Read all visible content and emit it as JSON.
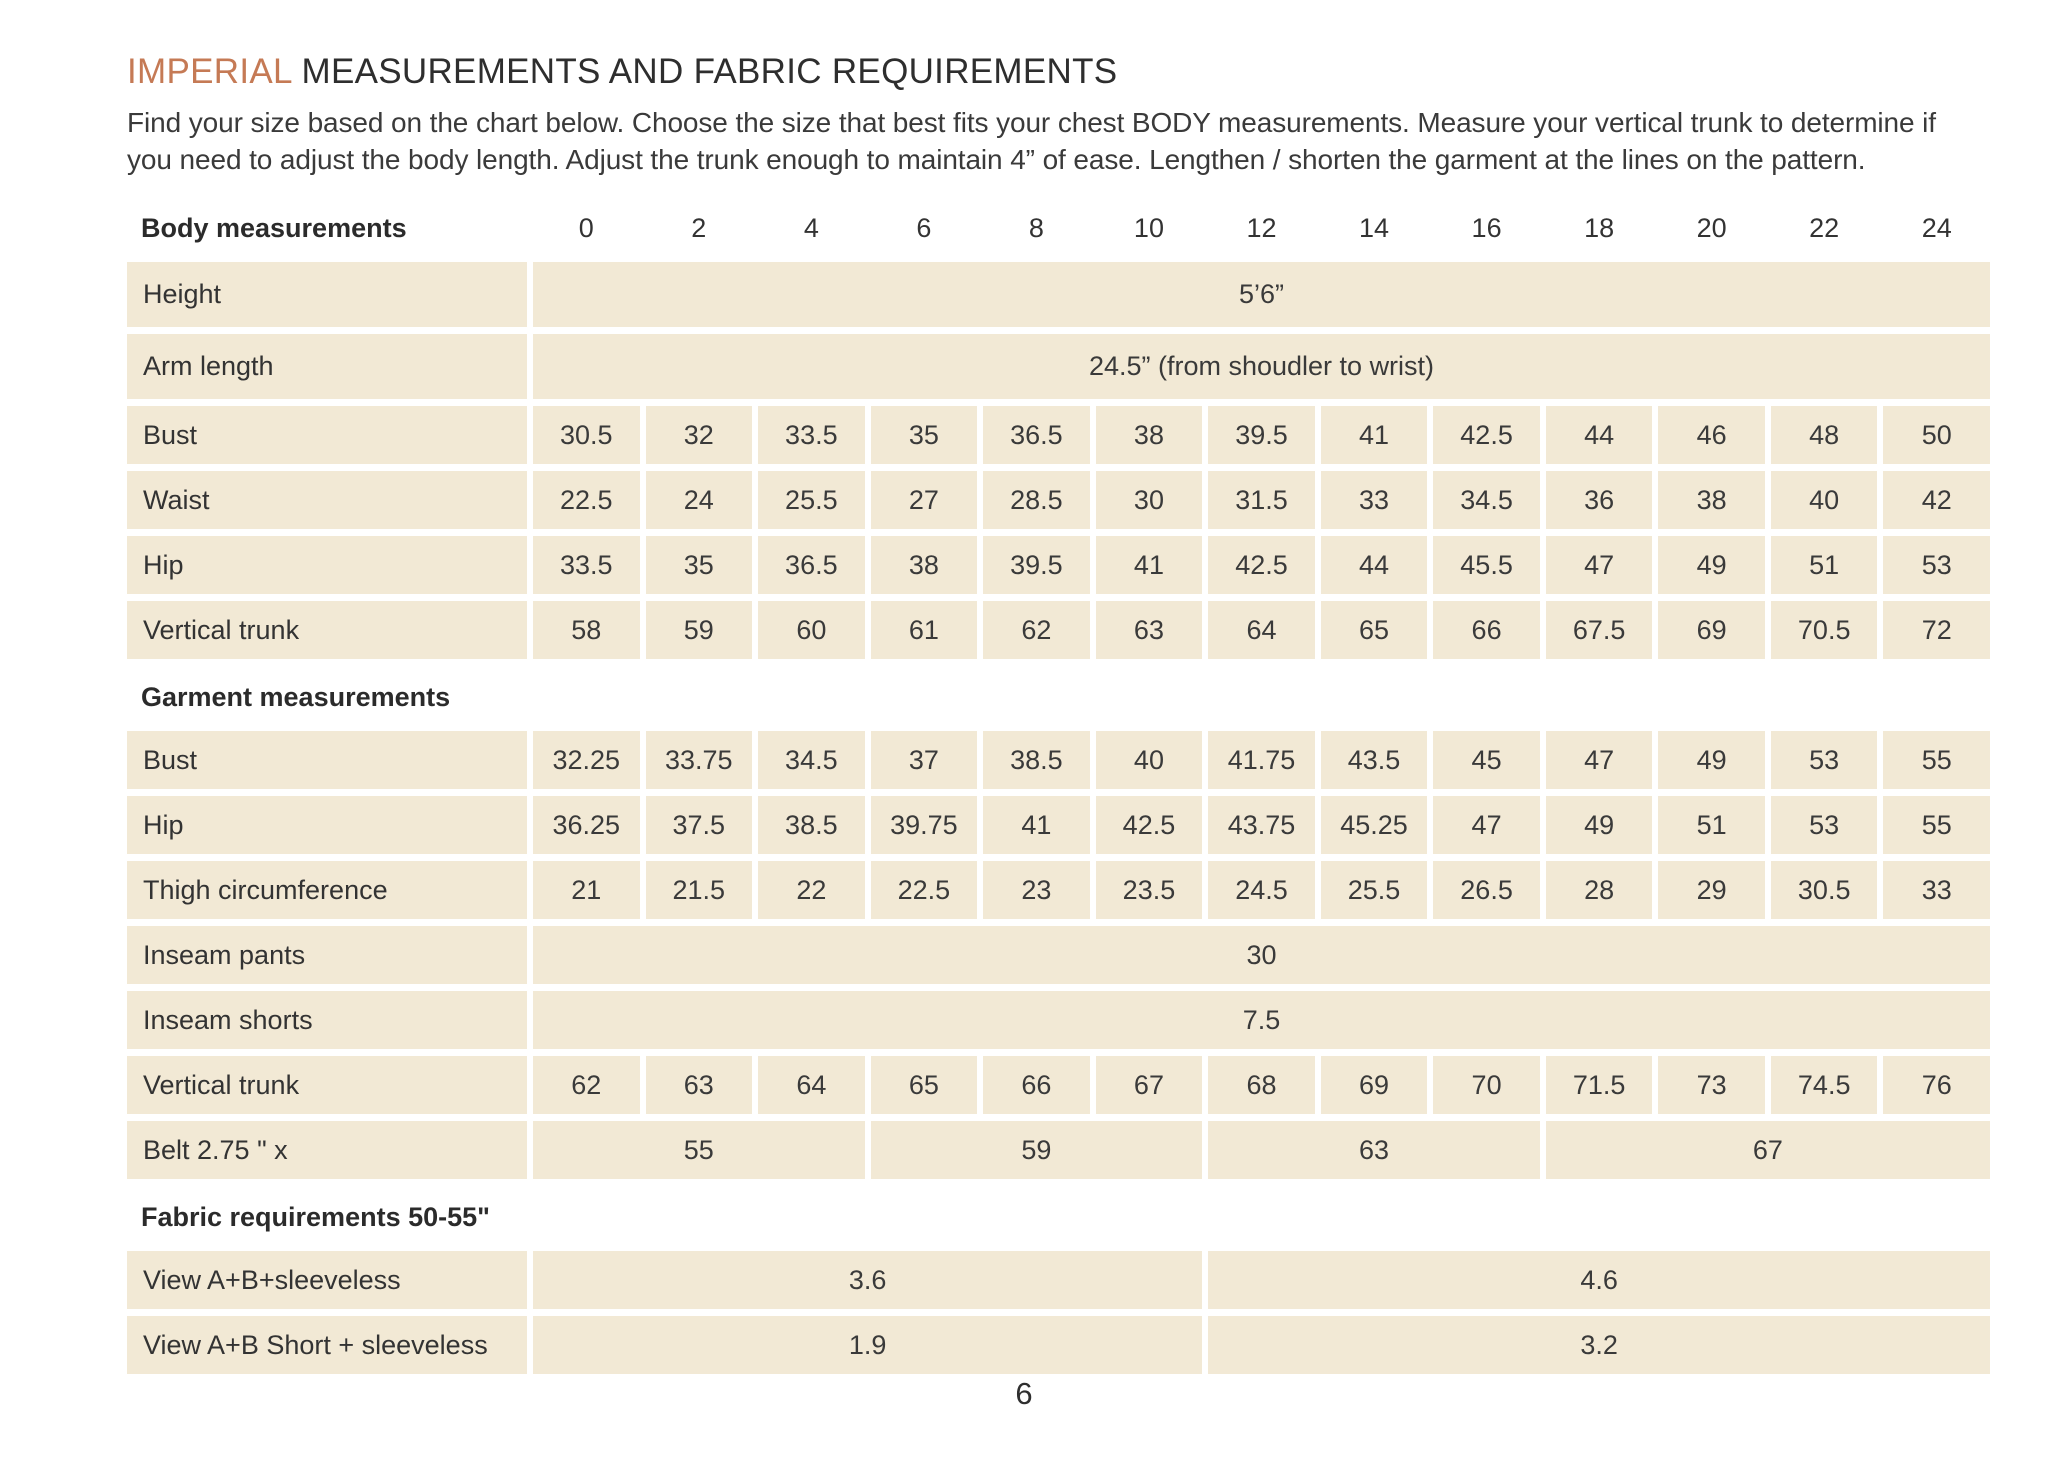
{
  "page": {
    "title_accent": "IMPERIAL",
    "title_rest": " MEASUREMENTS AND FABRIC REQUIREMENTS",
    "intro": "Find your size based on the chart below. Choose the size that best fits your chest BODY measurements. Measure your vertical trunk to determine if you need to adjust the body length. Adjust the trunk enough to maintain 4” of ease. Lengthen / shorten the garment at the lines on the pattern.",
    "page_number": "6"
  },
  "colors": {
    "accent_orange": "#c57a55",
    "cell_beige": "#f2e9d5",
    "text_dark": "#2f2f2f"
  },
  "table": {
    "sizes": [
      "0",
      "2",
      "4",
      "6",
      "8",
      "10",
      "12",
      "14",
      "16",
      "18",
      "20",
      "22",
      "24"
    ],
    "sections": [
      {
        "heading": "Body measurements",
        "show_sizes": true,
        "rows": [
          {
            "label": "Height",
            "span_value": "5’6”",
            "tall": true
          },
          {
            "label": "Arm length",
            "span_value": "24.5” (from shoudler to wrist)",
            "tall": true
          },
          {
            "label": "Bust",
            "values": [
              "30.5",
              "32",
              "33.5",
              "35",
              "36.5",
              "38",
              "39.5",
              "41",
              "42.5",
              "44",
              "46",
              "48",
              "50"
            ]
          },
          {
            "label": "Waist",
            "values": [
              "22.5",
              "24",
              "25.5",
              "27",
              "28.5",
              "30",
              "31.5",
              "33",
              "34.5",
              "36",
              "38",
              "40",
              "42"
            ]
          },
          {
            "label": "Hip",
            "values": [
              "33.5",
              "35",
              "36.5",
              "38",
              "39.5",
              "41",
              "42.5",
              "44",
              "45.5",
              "47",
              "49",
              "51",
              "53"
            ]
          },
          {
            "label": "Vertical trunk",
            "values": [
              "58",
              "59",
              "60",
              "61",
              "62",
              "63",
              "64",
              "65",
              "66",
              "67.5",
              "69",
              "70.5",
              "72"
            ]
          }
        ]
      },
      {
        "heading": "Garment measurements",
        "show_sizes": false,
        "rows": [
          {
            "label": "Bust",
            "values": [
              "32.25",
              "33.75",
              "34.5",
              "37",
              "38.5",
              "40",
              "41.75",
              "43.5",
              "45",
              "47",
              "49",
              "53",
              "55"
            ]
          },
          {
            "label": "Hip",
            "values": [
              "36.25",
              "37.5",
              "38.5",
              "39.75",
              "41",
              "42.5",
              "43.75",
              "45.25",
              "47",
              "49",
              "51",
              "53",
              "55"
            ]
          },
          {
            "label": "Thigh circumference",
            "values": [
              "21",
              "21.5",
              "22",
              "22.5",
              "23",
              "23.5",
              "24.5",
              "25.5",
              "26.5",
              "28",
              "29",
              "30.5",
              "33"
            ]
          },
          {
            "label": "Inseam pants",
            "span_value": "30"
          },
          {
            "label": "Inseam shorts",
            "span_value": "7.5"
          },
          {
            "label": "Vertical trunk",
            "values": [
              "62",
              "63",
              "64",
              "65",
              "66",
              "67",
              "68",
              "69",
              "70",
              "71.5",
              "73",
              "74.5",
              "76"
            ]
          },
          {
            "label": "Belt 2.75 \" x",
            "groups": [
              {
                "span": 3,
                "value": "55"
              },
              {
                "span": 3,
                "value": "59"
              },
              {
                "span": 3,
                "value": "63"
              },
              {
                "span": 4,
                "value": "67"
              }
            ]
          }
        ]
      },
      {
        "heading": "Fabric requirements 50-55\"",
        "show_sizes": false,
        "rows": [
          {
            "label": "View A+B+sleeveless",
            "groups": [
              {
                "span": 6,
                "value": "3.6"
              },
              {
                "span": 7,
                "value": "4.6"
              }
            ]
          },
          {
            "label": "View A+B Short + sleeveless",
            "groups": [
              {
                "span": 6,
                "value": "1.9"
              },
              {
                "span": 7,
                "value": "3.2"
              }
            ]
          }
        ]
      }
    ]
  }
}
